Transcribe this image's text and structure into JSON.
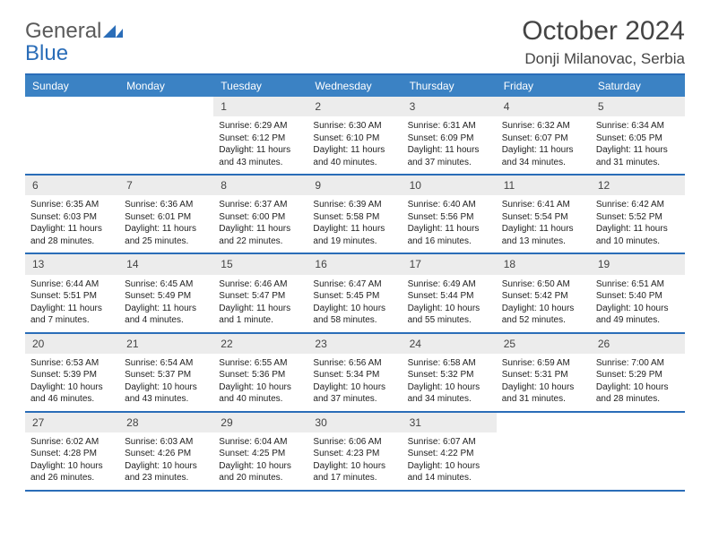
{
  "logo": {
    "line1": "General",
    "line2": "Blue"
  },
  "title": "October 2024",
  "location": "Donji Milanovac, Serbia",
  "colors": {
    "header_bg": "#3b82c4",
    "header_text": "#ffffff",
    "border": "#2a6db8",
    "daynum_bg": "#ececec",
    "text": "#333333",
    "logo_grey": "#5a5a5a",
    "logo_blue": "#2a6db8",
    "background": "#ffffff"
  },
  "day_labels": [
    "Sunday",
    "Monday",
    "Tuesday",
    "Wednesday",
    "Thursday",
    "Friday",
    "Saturday"
  ],
  "weeks": [
    [
      {
        "n": "",
        "empty": true
      },
      {
        "n": "",
        "empty": true
      },
      {
        "n": "1",
        "sr": "Sunrise: 6:29 AM",
        "ss": "Sunset: 6:12 PM",
        "dl": "Daylight: 11 hours and 43 minutes."
      },
      {
        "n": "2",
        "sr": "Sunrise: 6:30 AM",
        "ss": "Sunset: 6:10 PM",
        "dl": "Daylight: 11 hours and 40 minutes."
      },
      {
        "n": "3",
        "sr": "Sunrise: 6:31 AM",
        "ss": "Sunset: 6:09 PM",
        "dl": "Daylight: 11 hours and 37 minutes."
      },
      {
        "n": "4",
        "sr": "Sunrise: 6:32 AM",
        "ss": "Sunset: 6:07 PM",
        "dl": "Daylight: 11 hours and 34 minutes."
      },
      {
        "n": "5",
        "sr": "Sunrise: 6:34 AM",
        "ss": "Sunset: 6:05 PM",
        "dl": "Daylight: 11 hours and 31 minutes."
      }
    ],
    [
      {
        "n": "6",
        "sr": "Sunrise: 6:35 AM",
        "ss": "Sunset: 6:03 PM",
        "dl": "Daylight: 11 hours and 28 minutes."
      },
      {
        "n": "7",
        "sr": "Sunrise: 6:36 AM",
        "ss": "Sunset: 6:01 PM",
        "dl": "Daylight: 11 hours and 25 minutes."
      },
      {
        "n": "8",
        "sr": "Sunrise: 6:37 AM",
        "ss": "Sunset: 6:00 PM",
        "dl": "Daylight: 11 hours and 22 minutes."
      },
      {
        "n": "9",
        "sr": "Sunrise: 6:39 AM",
        "ss": "Sunset: 5:58 PM",
        "dl": "Daylight: 11 hours and 19 minutes."
      },
      {
        "n": "10",
        "sr": "Sunrise: 6:40 AM",
        "ss": "Sunset: 5:56 PM",
        "dl": "Daylight: 11 hours and 16 minutes."
      },
      {
        "n": "11",
        "sr": "Sunrise: 6:41 AM",
        "ss": "Sunset: 5:54 PM",
        "dl": "Daylight: 11 hours and 13 minutes."
      },
      {
        "n": "12",
        "sr": "Sunrise: 6:42 AM",
        "ss": "Sunset: 5:52 PM",
        "dl": "Daylight: 11 hours and 10 minutes."
      }
    ],
    [
      {
        "n": "13",
        "sr": "Sunrise: 6:44 AM",
        "ss": "Sunset: 5:51 PM",
        "dl": "Daylight: 11 hours and 7 minutes."
      },
      {
        "n": "14",
        "sr": "Sunrise: 6:45 AM",
        "ss": "Sunset: 5:49 PM",
        "dl": "Daylight: 11 hours and 4 minutes."
      },
      {
        "n": "15",
        "sr": "Sunrise: 6:46 AM",
        "ss": "Sunset: 5:47 PM",
        "dl": "Daylight: 11 hours and 1 minute."
      },
      {
        "n": "16",
        "sr": "Sunrise: 6:47 AM",
        "ss": "Sunset: 5:45 PM",
        "dl": "Daylight: 10 hours and 58 minutes."
      },
      {
        "n": "17",
        "sr": "Sunrise: 6:49 AM",
        "ss": "Sunset: 5:44 PM",
        "dl": "Daylight: 10 hours and 55 minutes."
      },
      {
        "n": "18",
        "sr": "Sunrise: 6:50 AM",
        "ss": "Sunset: 5:42 PM",
        "dl": "Daylight: 10 hours and 52 minutes."
      },
      {
        "n": "19",
        "sr": "Sunrise: 6:51 AM",
        "ss": "Sunset: 5:40 PM",
        "dl": "Daylight: 10 hours and 49 minutes."
      }
    ],
    [
      {
        "n": "20",
        "sr": "Sunrise: 6:53 AM",
        "ss": "Sunset: 5:39 PM",
        "dl": "Daylight: 10 hours and 46 minutes."
      },
      {
        "n": "21",
        "sr": "Sunrise: 6:54 AM",
        "ss": "Sunset: 5:37 PM",
        "dl": "Daylight: 10 hours and 43 minutes."
      },
      {
        "n": "22",
        "sr": "Sunrise: 6:55 AM",
        "ss": "Sunset: 5:36 PM",
        "dl": "Daylight: 10 hours and 40 minutes."
      },
      {
        "n": "23",
        "sr": "Sunrise: 6:56 AM",
        "ss": "Sunset: 5:34 PM",
        "dl": "Daylight: 10 hours and 37 minutes."
      },
      {
        "n": "24",
        "sr": "Sunrise: 6:58 AM",
        "ss": "Sunset: 5:32 PM",
        "dl": "Daylight: 10 hours and 34 minutes."
      },
      {
        "n": "25",
        "sr": "Sunrise: 6:59 AM",
        "ss": "Sunset: 5:31 PM",
        "dl": "Daylight: 10 hours and 31 minutes."
      },
      {
        "n": "26",
        "sr": "Sunrise: 7:00 AM",
        "ss": "Sunset: 5:29 PM",
        "dl": "Daylight: 10 hours and 28 minutes."
      }
    ],
    [
      {
        "n": "27",
        "sr": "Sunrise: 6:02 AM",
        "ss": "Sunset: 4:28 PM",
        "dl": "Daylight: 10 hours and 26 minutes."
      },
      {
        "n": "28",
        "sr": "Sunrise: 6:03 AM",
        "ss": "Sunset: 4:26 PM",
        "dl": "Daylight: 10 hours and 23 minutes."
      },
      {
        "n": "29",
        "sr": "Sunrise: 6:04 AM",
        "ss": "Sunset: 4:25 PM",
        "dl": "Daylight: 10 hours and 20 minutes."
      },
      {
        "n": "30",
        "sr": "Sunrise: 6:06 AM",
        "ss": "Sunset: 4:23 PM",
        "dl": "Daylight: 10 hours and 17 minutes."
      },
      {
        "n": "31",
        "sr": "Sunrise: 6:07 AM",
        "ss": "Sunset: 4:22 PM",
        "dl": "Daylight: 10 hours and 14 minutes."
      },
      {
        "n": "",
        "empty": true
      },
      {
        "n": "",
        "empty": true
      }
    ]
  ]
}
